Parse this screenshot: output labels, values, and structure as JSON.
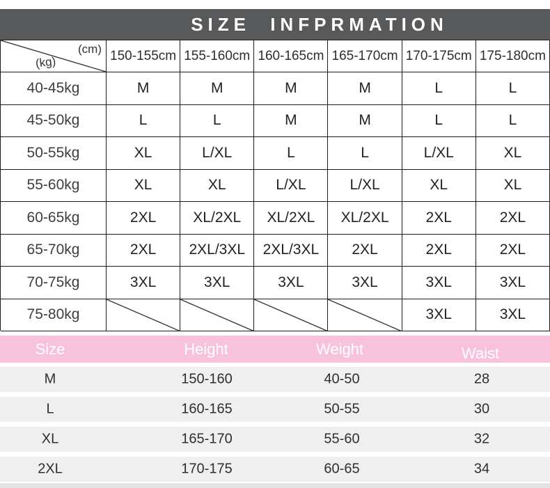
{
  "title": "SIZE INFPRMATION",
  "colors": {
    "banner_bg": "#58595b",
    "banner_text": "#ffffff",
    "table_border": "#1c1c1c",
    "pink_header_bg": "#f8c2dc",
    "pink_header_text": "#ffffff",
    "row_bg": "#f0efef",
    "bottom_strip": "#e3e3e3"
  },
  "size_grid": {
    "corner": {
      "top_label": "(cm)",
      "bottom_label": "(kg)"
    },
    "height_columns": [
      "150-155cm",
      "155-160cm",
      "160-165cm",
      "165-170cm",
      "170-175cm",
      "175-180cm"
    ],
    "rows": [
      {
        "weight": "40-45kg",
        "cells": [
          "M",
          "M",
          "M",
          "M",
          "L",
          "L"
        ]
      },
      {
        "weight": "45-50kg",
        "cells": [
          "L",
          "L",
          "M",
          "M",
          "L",
          "L"
        ]
      },
      {
        "weight": "50-55kg",
        "cells": [
          "XL",
          "L/XL",
          "L",
          "L",
          "L/XL",
          "XL"
        ]
      },
      {
        "weight": "55-60kg",
        "cells": [
          "XL",
          "XL",
          "L/XL",
          "L/XL",
          "XL",
          "XL"
        ]
      },
      {
        "weight": "60-65kg",
        "cells": [
          "2XL",
          "XL/2XL",
          "XL/2XL",
          "XL/2XL",
          "2XL",
          "2XL"
        ]
      },
      {
        "weight": "65-70kg",
        "cells": [
          "2XL",
          "2XL/3XL",
          "2XL/3XL",
          "2XL",
          "2XL",
          "2XL"
        ]
      },
      {
        "weight": "70-75kg",
        "cells": [
          "3XL",
          "3XL",
          "3XL",
          "3XL",
          "3XL",
          "3XL"
        ]
      },
      {
        "weight": "75-80kg",
        "cells": [
          "",
          "",
          "",
          "",
          "3XL",
          "3XL"
        ]
      }
    ]
  },
  "measure_table": {
    "headers": [
      "Size",
      "Height",
      "Weight",
      "Waist"
    ],
    "rows": [
      [
        "M",
        "150-160",
        "40-50",
        "28"
      ],
      [
        "L",
        "160-165",
        "50-55",
        "30"
      ],
      [
        "XL",
        "165-170",
        "55-60",
        "32"
      ],
      [
        "2XL",
        "170-175",
        "60-65",
        "34"
      ]
    ]
  },
  "chart_data": [
    {
      "type": "table",
      "title": "SIZE INFPRMATION",
      "columns": [
        "(kg) \\ (cm)",
        "150-155cm",
        "155-160cm",
        "160-165cm",
        "165-170cm",
        "170-175cm",
        "175-180cm"
      ],
      "rows": [
        [
          "40-45kg",
          "M",
          "M",
          "M",
          "M",
          "L",
          "L"
        ],
        [
          "45-50kg",
          "L",
          "L",
          "M",
          "M",
          "L",
          "L"
        ],
        [
          "50-55kg",
          "XL",
          "L/XL",
          "L",
          "L",
          "L/XL",
          "XL"
        ],
        [
          "55-60kg",
          "XL",
          "XL",
          "L/XL",
          "L/XL",
          "XL",
          "XL"
        ],
        [
          "60-65kg",
          "2XL",
          "XL/2XL",
          "XL/2XL",
          "XL/2XL",
          "2XL",
          "2XL"
        ],
        [
          "65-70kg",
          "2XL",
          "2XL/3XL",
          "2XL/3XL",
          "2XL",
          "2XL",
          "2XL"
        ],
        [
          "70-75kg",
          "3XL",
          "3XL",
          "3XL",
          "3XL",
          "3XL",
          "3XL"
        ],
        [
          "75-80kg",
          "",
          "",
          "",
          "",
          "3XL",
          "3XL"
        ]
      ]
    },
    {
      "type": "table",
      "columns": [
        "Size",
        "Height",
        "Weight",
        "Waist"
      ],
      "rows": [
        [
          "M",
          "150-160",
          "40-50",
          "28"
        ],
        [
          "L",
          "160-165",
          "50-55",
          "30"
        ],
        [
          "XL",
          "165-170",
          "55-60",
          "32"
        ],
        [
          "2XL",
          "170-175",
          "60-65",
          "34"
        ]
      ]
    }
  ]
}
